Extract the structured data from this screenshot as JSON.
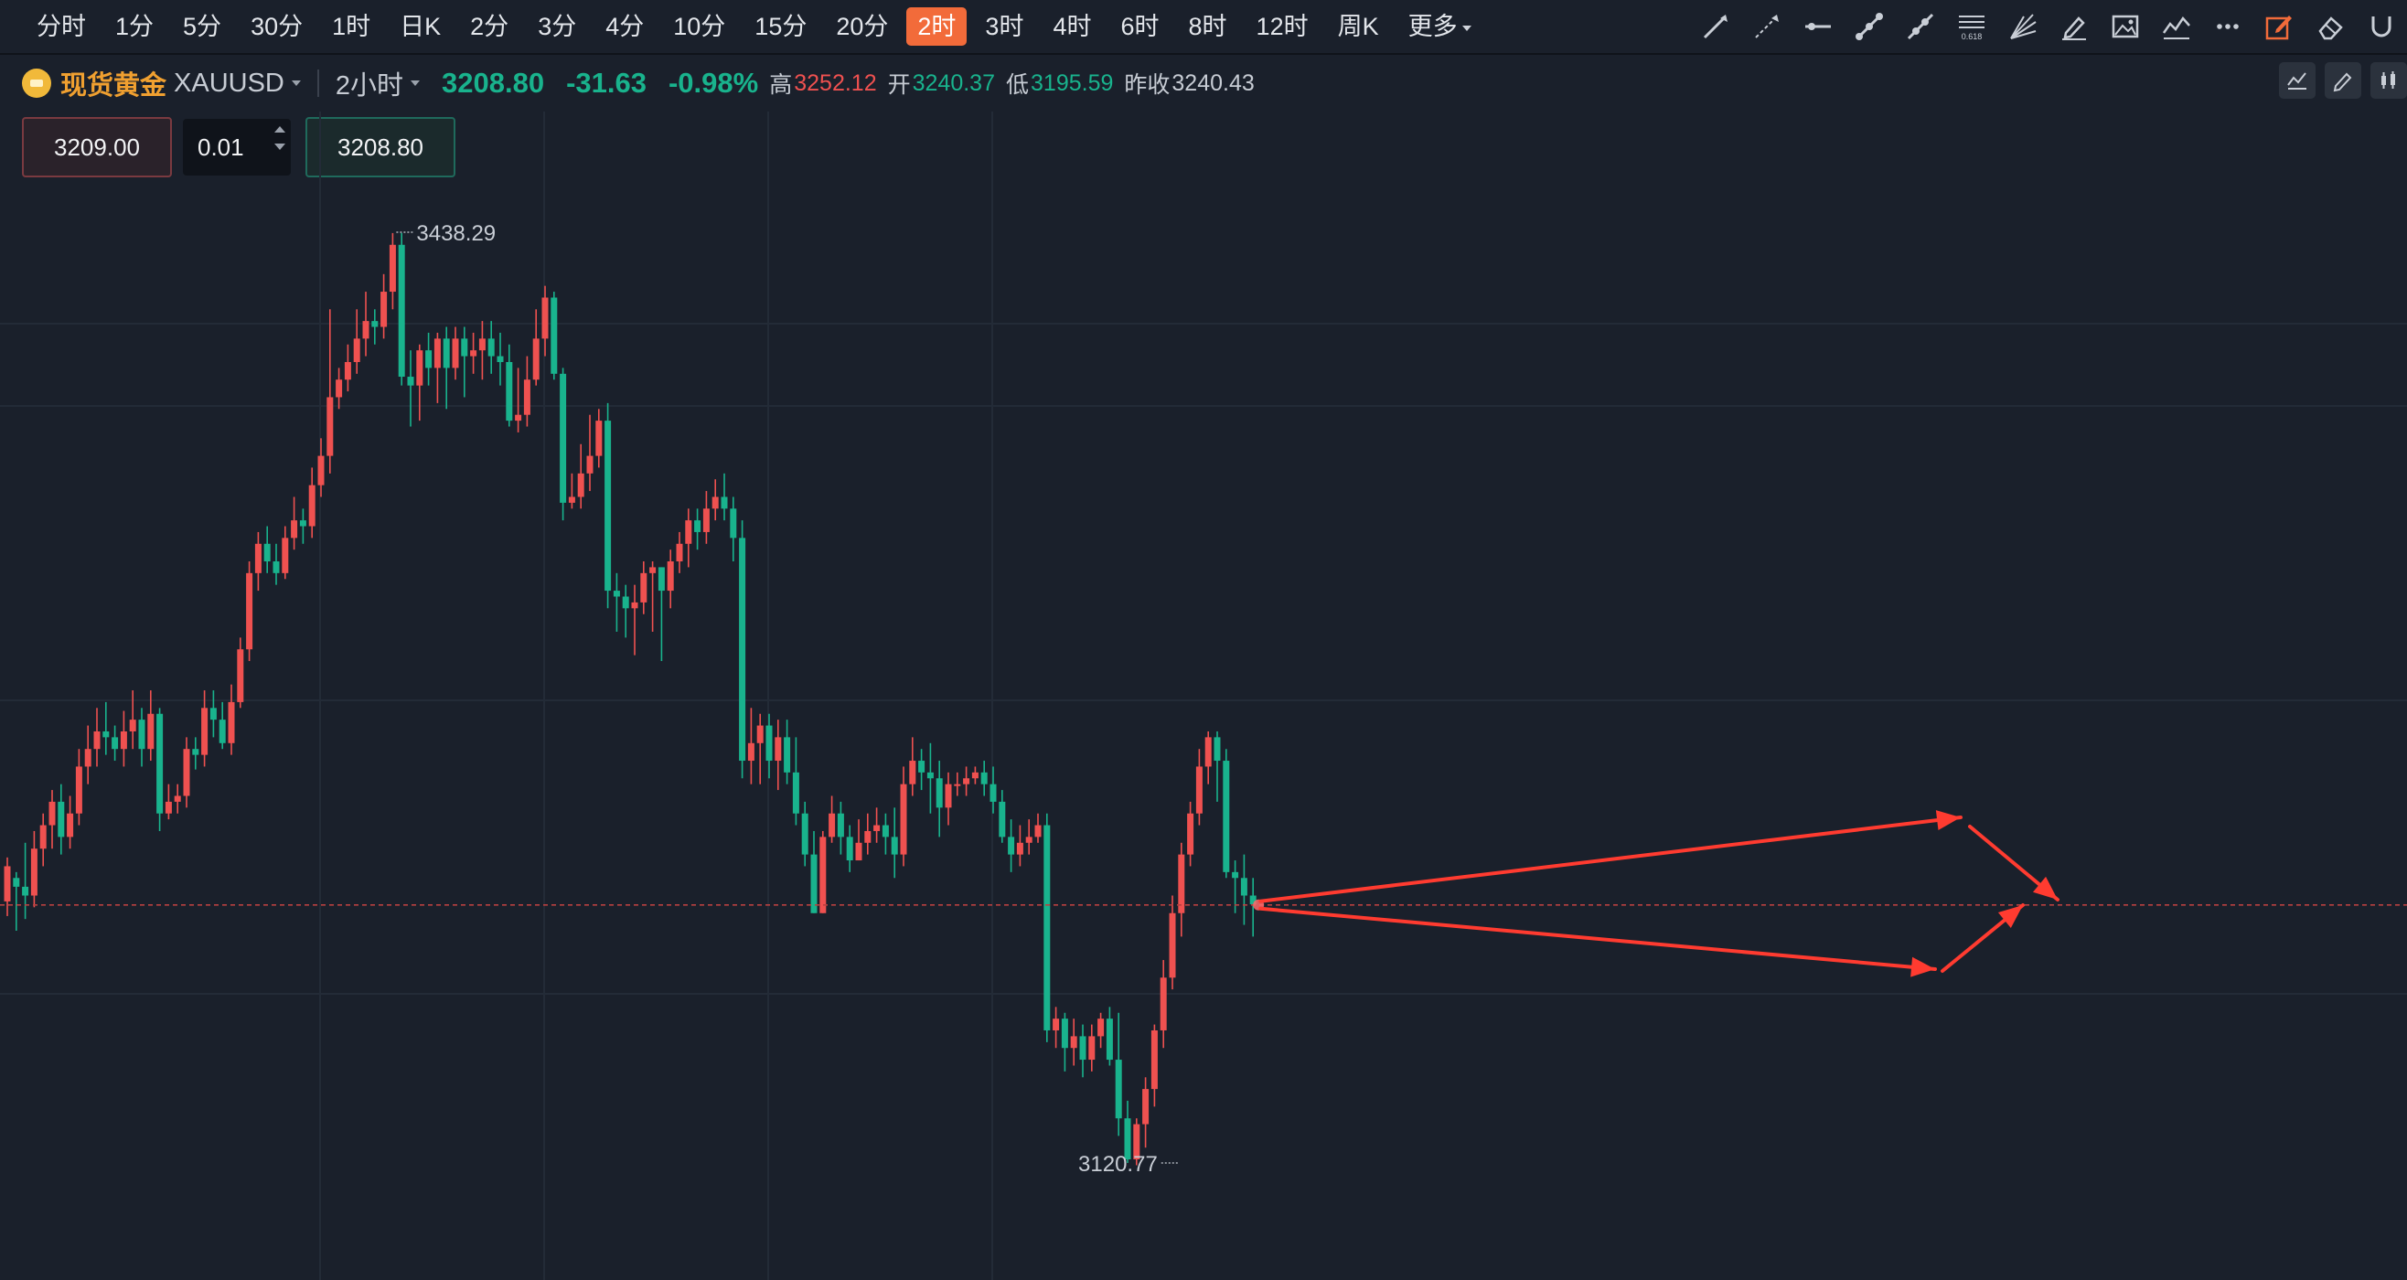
{
  "toolbar": {
    "periods": [
      "分时",
      "1分",
      "5分",
      "30分",
      "1时",
      "日K",
      "2分",
      "3分",
      "4分",
      "10分",
      "15分",
      "20分",
      "2时",
      "3时",
      "4时",
      "6时",
      "8时",
      "12时",
      "周K",
      "更多"
    ],
    "active_period": "2时",
    "tools": [
      "trend-line-icon",
      "ray-line-icon",
      "horizontal-line-icon",
      "segment-line-icon",
      "extended-line-icon",
      "fibonacci-icon",
      "fan-icon",
      "pen-icon",
      "image-icon",
      "pattern-icon",
      "more-dots-icon",
      "edit-note-icon",
      "eraser-icon",
      "magnet-icon"
    ]
  },
  "header": {
    "name": "现货黄金",
    "code": "XAUUSD",
    "interval": "2小时",
    "last": "3208.80",
    "change": "-31.63",
    "change_pct": "-0.98%",
    "high_label": "高",
    "high": "3252.12",
    "open_label": "开",
    "open": "3240.37",
    "low_label": "低",
    "low": "3195.59",
    "prev_label": "昨收",
    "prev": "3240.43"
  },
  "order": {
    "sell_price": "3209.00",
    "quantity": "0.01",
    "buy_price": "3208.80"
  },
  "chart_data": {
    "type": "candlestick",
    "annotations": {
      "max_label": "3438.29",
      "min_label": "3120.77"
    },
    "current_price": 3208.8,
    "colors": {
      "up": "#ef5150",
      "down": "#19b38d",
      "arrow": "#ff3b30",
      "price_line": "#b84040"
    },
    "candles": [
      [
        3210,
        3222,
        3205,
        3225
      ],
      [
        3218,
        3215,
        3200,
        3220
      ],
      [
        3215,
        3212,
        3204,
        3230
      ],
      [
        3212,
        3228,
        3208,
        3234
      ],
      [
        3228,
        3236,
        3222,
        3240
      ],
      [
        3236,
        3244,
        3228,
        3248
      ],
      [
        3244,
        3232,
        3226,
        3250
      ],
      [
        3232,
        3240,
        3228,
        3246
      ],
      [
        3240,
        3256,
        3236,
        3262
      ],
      [
        3256,
        3262,
        3250,
        3270
      ],
      [
        3262,
        3268,
        3256,
        3276
      ],
      [
        3268,
        3266,
        3260,
        3278
      ],
      [
        3266,
        3262,
        3258,
        3270
      ],
      [
        3262,
        3268,
        3256,
        3275
      ],
      [
        3268,
        3272,
        3262,
        3282
      ],
      [
        3272,
        3262,
        3256,
        3276
      ],
      [
        3262,
        3274,
        3258,
        3282
      ],
      [
        3274,
        3240,
        3234,
        3276
      ],
      [
        3240,
        3244,
        3238,
        3250
      ],
      [
        3244,
        3246,
        3240,
        3250
      ],
      [
        3246,
        3262,
        3242,
        3266
      ],
      [
        3262,
        3260,
        3255,
        3266
      ],
      [
        3260,
        3276,
        3256,
        3282
      ],
      [
        3276,
        3272,
        3266,
        3282
      ],
      [
        3272,
        3264,
        3262,
        3278
      ],
      [
        3264,
        3278,
        3260,
        3284
      ],
      [
        3278,
        3296,
        3276,
        3300
      ],
      [
        3296,
        3322,
        3292,
        3326
      ],
      [
        3322,
        3332,
        3316,
        3336
      ],
      [
        3332,
        3326,
        3322,
        3338
      ],
      [
        3326,
        3322,
        3318,
        3332
      ],
      [
        3322,
        3334,
        3320,
        3338
      ],
      [
        3334,
        3340,
        3330,
        3348
      ],
      [
        3340,
        3338,
        3332,
        3344
      ],
      [
        3338,
        3352,
        3334,
        3358
      ],
      [
        3352,
        3362,
        3348,
        3368
      ],
      [
        3362,
        3382,
        3356,
        3412
      ],
      [
        3382,
        3388,
        3378,
        3392
      ],
      [
        3388,
        3394,
        3384,
        3400
      ],
      [
        3394,
        3402,
        3390,
        3412
      ],
      [
        3402,
        3408,
        3396,
        3418
      ],
      [
        3408,
        3406,
        3400,
        3412
      ],
      [
        3406,
        3418,
        3402,
        3424
      ],
      [
        3418,
        3434,
        3412,
        3438
      ],
      [
        3434,
        3389,
        3386,
        3438
      ],
      [
        3389,
        3386,
        3372,
        3398
      ],
      [
        3386,
        3398,
        3374,
        3400
      ],
      [
        3398,
        3392,
        3386,
        3404
      ],
      [
        3392,
        3402,
        3380,
        3404
      ],
      [
        3402,
        3392,
        3378,
        3406
      ],
      [
        3392,
        3402,
        3388,
        3406
      ],
      [
        3402,
        3396,
        3382,
        3406
      ],
      [
        3396,
        3398,
        3390,
        3404
      ],
      [
        3398,
        3402,
        3388,
        3408
      ],
      [
        3402,
        3396,
        3390,
        3408
      ],
      [
        3396,
        3394,
        3386,
        3404
      ],
      [
        3394,
        3374,
        3372,
        3400
      ],
      [
        3374,
        3376,
        3370,
        3392
      ],
      [
        3376,
        3388,
        3372,
        3396
      ],
      [
        3388,
        3402,
        3386,
        3412
      ],
      [
        3402,
        3416,
        3396,
        3420
      ],
      [
        3416,
        3390,
        3388,
        3418
      ],
      [
        3390,
        3346,
        3340,
        3392
      ],
      [
        3346,
        3348,
        3344,
        3356
      ],
      [
        3348,
        3356,
        3344,
        3366
      ],
      [
        3356,
        3362,
        3350,
        3376
      ],
      [
        3362,
        3374,
        3358,
        3378
      ],
      [
        3374,
        3316,
        3310,
        3380
      ],
      [
        3316,
        3314,
        3302,
        3322
      ],
      [
        3314,
        3310,
        3300,
        3318
      ],
      [
        3310,
        3312,
        3294,
        3318
      ],
      [
        3312,
        3322,
        3308,
        3326
      ],
      [
        3322,
        3324,
        3302,
        3326
      ],
      [
        3324,
        3316,
        3292,
        3324
      ],
      [
        3316,
        3326,
        3310,
        3330
      ],
      [
        3326,
        3332,
        3322,
        3336
      ],
      [
        3332,
        3340,
        3324,
        3344
      ],
      [
        3340,
        3336,
        3330,
        3344
      ],
      [
        3336,
        3344,
        3332,
        3350
      ],
      [
        3344,
        3348,
        3340,
        3354
      ],
      [
        3348,
        3344,
        3340,
        3356
      ],
      [
        3344,
        3334,
        3326,
        3348
      ],
      [
        3334,
        3258,
        3252,
        3340
      ],
      [
        3258,
        3264,
        3250,
        3276
      ],
      [
        3264,
        3270,
        3250,
        3274
      ],
      [
        3270,
        3258,
        3252,
        3274
      ],
      [
        3258,
        3266,
        3248,
        3272
      ],
      [
        3266,
        3254,
        3250,
        3272
      ],
      [
        3254,
        3240,
        3236,
        3266
      ],
      [
        3240,
        3226,
        3222,
        3244
      ],
      [
        3226,
        3206,
        3206,
        3234
      ],
      [
        3206,
        3232,
        3206,
        3234
      ],
      [
        3232,
        3240,
        3230,
        3246
      ],
      [
        3240,
        3232,
        3226,
        3244
      ],
      [
        3232,
        3224,
        3220,
        3236
      ],
      [
        3224,
        3230,
        3224,
        3238
      ],
      [
        3230,
        3234,
        3226,
        3240
      ],
      [
        3234,
        3236,
        3230,
        3242
      ],
      [
        3236,
        3232,
        3226,
        3240
      ],
      [
        3232,
        3226,
        3218,
        3242
      ],
      [
        3226,
        3250,
        3222,
        3256
      ],
      [
        3250,
        3258,
        3246,
        3266
      ],
      [
        3258,
        3254,
        3248,
        3262
      ],
      [
        3254,
        3252,
        3240,
        3264
      ],
      [
        3252,
        3242,
        3232,
        3258
      ],
      [
        3242,
        3250,
        3236,
        3254
      ],
      [
        3250,
        3250,
        3246,
        3254
      ],
      [
        3250,
        3252,
        3246,
        3256
      ],
      [
        3252,
        3254,
        3250,
        3256
      ],
      [
        3254,
        3250,
        3246,
        3258
      ],
      [
        3250,
        3244,
        3240,
        3256
      ],
      [
        3244,
        3232,
        3230,
        3248
      ],
      [
        3232,
        3226,
        3220,
        3238
      ],
      [
        3226,
        3230,
        3222,
        3236
      ],
      [
        3230,
        3232,
        3226,
        3238
      ],
      [
        3232,
        3236,
        3230,
        3240
      ],
      [
        3236,
        3166,
        3162,
        3240
      ],
      [
        3166,
        3170,
        3160,
        3174
      ],
      [
        3170,
        3160,
        3152,
        3172
      ],
      [
        3160,
        3164,
        3154,
        3170
      ],
      [
        3164,
        3156,
        3150,
        3168
      ],
      [
        3156,
        3164,
        3152,
        3168
      ],
      [
        3164,
        3170,
        3160,
        3172
      ],
      [
        3170,
        3156,
        3154,
        3174
      ],
      [
        3156,
        3136,
        3130,
        3172
      ],
      [
        3136,
        3122,
        3120.77,
        3142
      ],
      [
        3122,
        3134,
        3120,
        3136
      ],
      [
        3134,
        3146,
        3126,
        3150
      ],
      [
        3146,
        3166,
        3140,
        3168
      ],
      [
        3166,
        3184,
        3160,
        3190
      ],
      [
        3184,
        3206,
        3180,
        3212
      ],
      [
        3206,
        3226,
        3198,
        3230
      ],
      [
        3226,
        3240,
        3222,
        3244
      ],
      [
        3240,
        3256,
        3236,
        3262
      ],
      [
        3256,
        3266,
        3250,
        3268
      ],
      [
        3266,
        3258,
        3244,
        3268
      ],
      [
        3258,
        3220,
        3218,
        3262
      ],
      [
        3220,
        3218,
        3206,
        3224
      ],
      [
        3218,
        3212,
        3202,
        3226
      ],
      [
        3212,
        3209,
        3198,
        3218
      ]
    ]
  }
}
